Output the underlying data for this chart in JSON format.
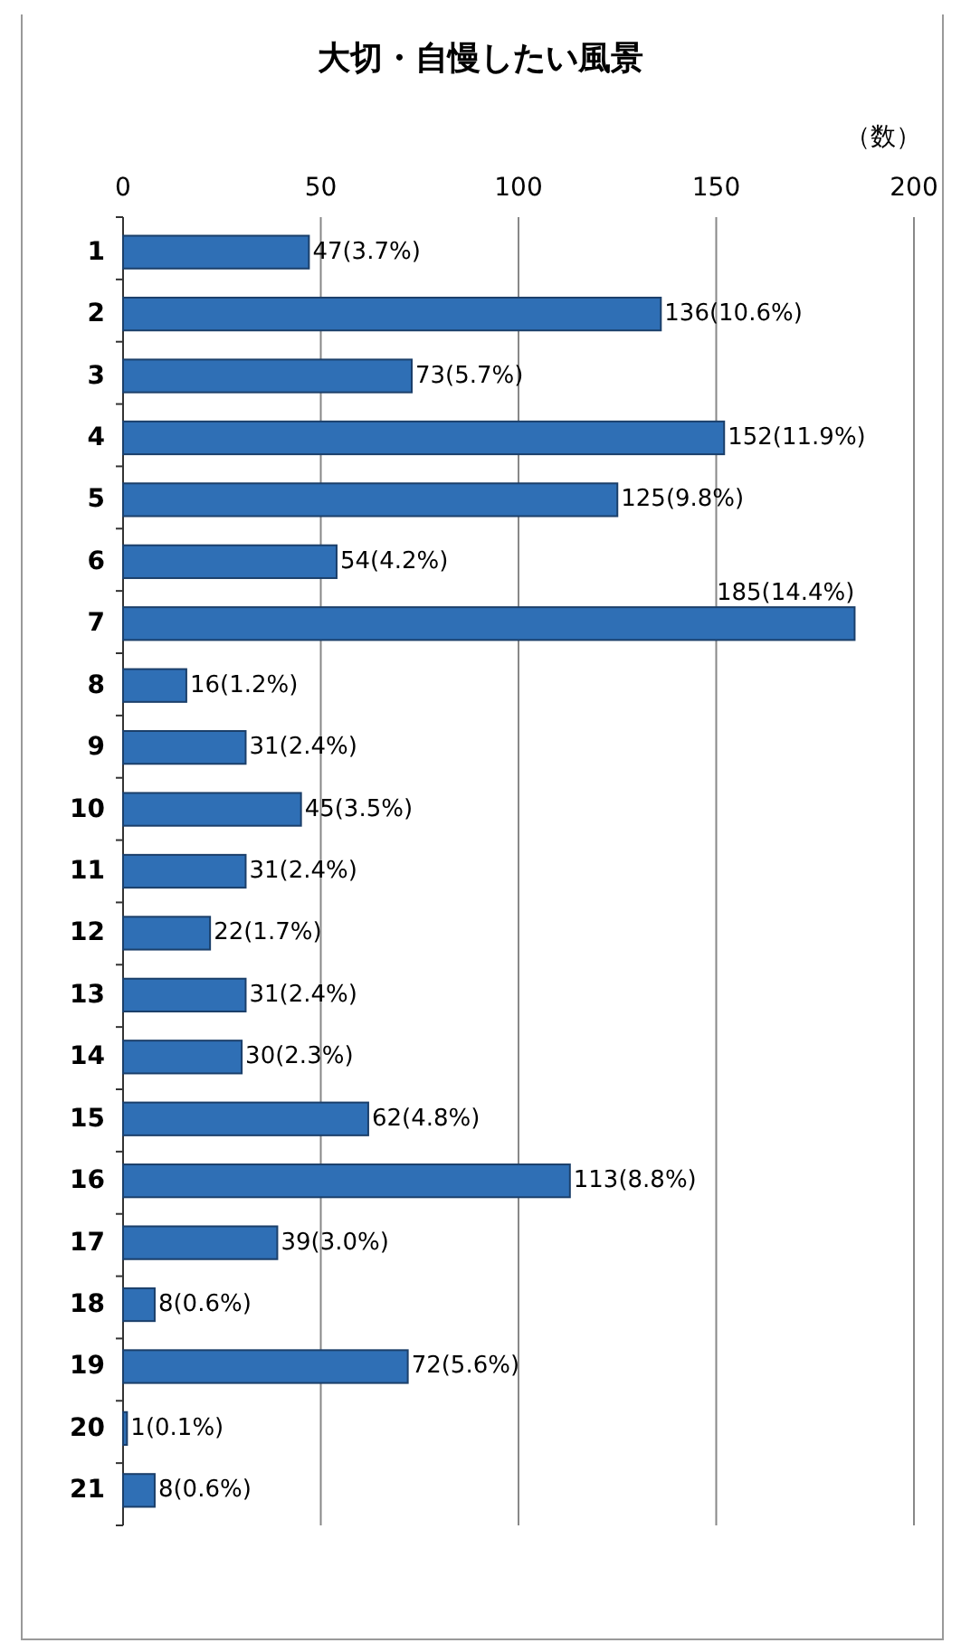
{
  "chart_data": {
    "type": "bar",
    "orientation": "horizontal",
    "title": "大切・自慢したい風景",
    "xlabel": "（数）",
    "categories": [
      "1",
      "2",
      "3",
      "4",
      "5",
      "6",
      "7",
      "8",
      "9",
      "10",
      "11",
      "12",
      "13",
      "14",
      "15",
      "16",
      "17",
      "18",
      "19",
      "20",
      "21"
    ],
    "values": [
      47,
      136,
      73,
      152,
      125,
      54,
      185,
      16,
      31,
      45,
      31,
      22,
      31,
      30,
      62,
      113,
      39,
      8,
      72,
      1,
      8
    ],
    "value_labels": [
      "47(3.7%)",
      "136(10.6%)",
      "73(5.7%)",
      "152(11.9%)",
      "125(9.8%)",
      "54(4.2%)",
      "185(14.4%)",
      "16(1.2%)",
      "31(2.4%)",
      "45(3.5%)",
      "31(2.4%)",
      "22(1.7%)",
      "31(2.4%)",
      "30(2.3%)",
      "62(4.8%)",
      "113(8.8%)",
      "39(3.0%)",
      "8(0.6%)",
      "72(5.6%)",
      "1(0.1%)",
      "8(0.6%)"
    ],
    "color": "#2f6fb5",
    "xlim": [
      0,
      200
    ],
    "xticks": [
      0,
      50,
      100,
      150,
      200
    ],
    "grid": "x"
  }
}
